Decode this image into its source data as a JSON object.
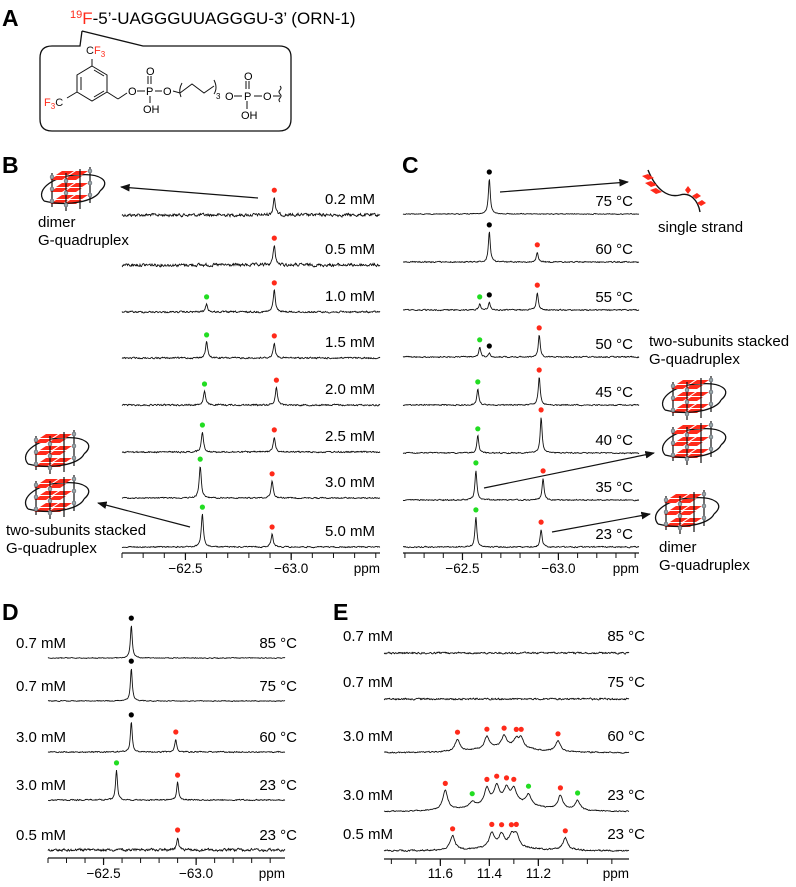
{
  "panel_a": {
    "letter": "A",
    "title_isotope": "19",
    "title_atom": "F",
    "title_sequence": "-5’-UAGGGUUAGGGU-3’ (ORN-1)",
    "molecule": {
      "cf3_top": "CF",
      "cf3_top_sub": "3",
      "f3c_left_f": "F",
      "f3c_left_sub": "3",
      "f3c_left_c": "C",
      "atoms": [
        "O",
        "P",
        "O",
        "O",
        "OH",
        "O",
        "P",
        "O",
        "O",
        "OH"
      ],
      "chain_repeat": "3"
    }
  },
  "annotations": {
    "b_dimer_line1": "dimer",
    "b_dimer_line2": "G-quadruplex",
    "b_stacked_line1": "two-subunits stacked",
    "b_stacked_line2": "G-quadruplex",
    "c_single": "single strand",
    "c_stacked_line1": "two-subunits stacked",
    "c_stacked_line2": "G-quadruplex",
    "c_dimer_line1": "dimer",
    "c_dimer_line2": "G-quadruplex"
  },
  "colors": {
    "dimer_peak": "#ff2a1a",
    "stacked_peak": "#22dd22",
    "single_strand_peak": "#000000",
    "tile": "#ff2a1a",
    "node": "#9aa9a9"
  },
  "chart_data": [
    {
      "panel": "B",
      "type": "line",
      "subtype": "NMR spectra stack",
      "xlabel": "ppm",
      "xlim": [
        -62.2,
        -63.42
      ],
      "x_ticks": [
        {
          "value": -62.5,
          "label": "−62.5"
        },
        {
          "value": -63.0,
          "label": "−63.0"
        }
      ],
      "minor_tick_step": 0.1,
      "line_width_ppm": 0.006,
      "rows": [
        {
          "label": "0.2 mM",
          "noise": 2.5,
          "peaks": [
            {
              "ppm": -62.92,
              "intensity": 0.51,
              "marker": "red"
            }
          ]
        },
        {
          "label": "0.5 mM",
          "noise": 2.5,
          "peaks": [
            {
              "ppm": -62.92,
              "intensity": 0.57,
              "marker": "red"
            }
          ]
        },
        {
          "label": "1.0 mM",
          "noise": 1.4,
          "peaks": [
            {
              "ppm": -62.6,
              "intensity": 0.23,
              "marker": "green"
            },
            {
              "ppm": -62.92,
              "intensity": 0.63,
              "marker": "red"
            }
          ]
        },
        {
          "label": "1.5 mM",
          "noise": 1.3,
          "peaks": [
            {
              "ppm": -62.6,
              "intensity": 0.46,
              "marker": "green"
            },
            {
              "ppm": -62.92,
              "intensity": 0.43,
              "marker": "red"
            }
          ]
        },
        {
          "label": "2.0 mM",
          "noise": 1.3,
          "peaks": [
            {
              "ppm": -62.59,
              "intensity": 0.4,
              "marker": "green"
            },
            {
              "ppm": -62.93,
              "intensity": 0.51,
              "marker": "red"
            }
          ]
        },
        {
          "label": "2.5 mM",
          "noise": 1.2,
          "peaks": [
            {
              "ppm": -62.58,
              "intensity": 0.57,
              "marker": "green"
            },
            {
              "ppm": -62.92,
              "intensity": 0.43,
              "marker": "red"
            }
          ]
        },
        {
          "label": "3.0 mM",
          "noise": 1.0,
          "peaks": [
            {
              "ppm": -62.57,
              "intensity": 0.91,
              "marker": "green"
            },
            {
              "ppm": -62.91,
              "intensity": 0.49,
              "marker": "red"
            }
          ]
        },
        {
          "label": "5.0 mM",
          "noise": 1.0,
          "peaks": [
            {
              "ppm": -62.58,
              "intensity": 0.94,
              "marker": "green"
            },
            {
              "ppm": -62.91,
              "intensity": 0.37,
              "marker": "red"
            }
          ]
        }
      ]
    },
    {
      "panel": "C",
      "type": "line",
      "subtype": "NMR spectra stack",
      "xlabel": "ppm",
      "xlim": [
        -62.19,
        -63.42
      ],
      "x_ticks": [
        {
          "value": -62.5,
          "label": "−62.5"
        },
        {
          "value": -63.0,
          "label": "−63.0"
        }
      ],
      "minor_tick_step": 0.1,
      "line_width_ppm": 0.006,
      "rows": [
        {
          "label": "75 °C",
          "noise": 0.7,
          "peaks": [
            {
              "ppm": -62.64,
              "intensity": 1.0,
              "marker": "black"
            }
          ]
        },
        {
          "label": "60 °C",
          "noise": 1.0,
          "peaks": [
            {
              "ppm": -62.64,
              "intensity": 0.86,
              "marker": "black"
            },
            {
              "ppm": -62.89,
              "intensity": 0.29,
              "marker": "red"
            }
          ]
        },
        {
          "label": "55 °C",
          "noise": 1.0,
          "peaks": [
            {
              "ppm": -62.59,
              "intensity": 0.17,
              "marker": "green"
            },
            {
              "ppm": -62.64,
              "intensity": 0.23,
              "marker": "black"
            },
            {
              "ppm": -62.89,
              "intensity": 0.51,
              "marker": "red"
            }
          ]
        },
        {
          "label": "50 °C",
          "noise": 1.0,
          "peaks": [
            {
              "ppm": -62.59,
              "intensity": 0.29,
              "marker": "green"
            },
            {
              "ppm": -62.64,
              "intensity": 0.11,
              "marker": "black"
            },
            {
              "ppm": -62.9,
              "intensity": 0.63,
              "marker": "red"
            }
          ]
        },
        {
          "label": "45 °C",
          "noise": 1.0,
          "peaks": [
            {
              "ppm": -62.58,
              "intensity": 0.46,
              "marker": "green"
            },
            {
              "ppm": -62.9,
              "intensity": 0.8,
              "marker": "red"
            }
          ]
        },
        {
          "label": "40 °C",
          "noise": 1.0,
          "peaks": [
            {
              "ppm": -62.58,
              "intensity": 0.49,
              "marker": "green"
            },
            {
              "ppm": -62.91,
              "intensity": 1.03,
              "marker": "red"
            }
          ]
        },
        {
          "label": "35 °C",
          "noise": 1.0,
          "peaks": [
            {
              "ppm": -62.57,
              "intensity": 0.86,
              "marker": "green"
            },
            {
              "ppm": -62.92,
              "intensity": 0.63,
              "marker": "red"
            }
          ]
        },
        {
          "label": "23 °C",
          "noise": 1.0,
          "peaks": [
            {
              "ppm": -62.57,
              "intensity": 0.86,
              "marker": "green"
            },
            {
              "ppm": -62.91,
              "intensity": 0.51,
              "marker": "red"
            }
          ]
        }
      ]
    },
    {
      "panel": "D",
      "type": "line",
      "subtype": "NMR spectra stack",
      "xlabel": "ppm",
      "xlim": [
        -62.2,
        -63.48
      ],
      "x_ticks": [
        {
          "value": -62.5,
          "label": "−62.5"
        },
        {
          "value": -63.0,
          "label": "−63.0"
        }
      ],
      "minor_tick_step": 0.1,
      "line_width_ppm": 0.006,
      "rows": [
        {
          "label": "0.7 mM",
          "condition": "85 °C",
          "noise": 0.7,
          "peaks": [
            {
              "ppm": -62.65,
              "intensity": 0.94,
              "marker": "black"
            }
          ]
        },
        {
          "label": "0.7 mM",
          "condition": "75 °C",
          "noise": 0.7,
          "peaks": [
            {
              "ppm": -62.65,
              "intensity": 0.94,
              "marker": "black"
            }
          ]
        },
        {
          "label": "3.0 mM",
          "condition": "60 °C",
          "noise": 1.0,
          "peaks": [
            {
              "ppm": -62.65,
              "intensity": 0.86,
              "marker": "black"
            },
            {
              "ppm": -62.89,
              "intensity": 0.37,
              "marker": "red"
            }
          ]
        },
        {
          "label": "3.0 mM",
          "condition": "23 °C",
          "noise": 1.0,
          "peaks": [
            {
              "ppm": -62.57,
              "intensity": 0.86,
              "marker": "green"
            },
            {
              "ppm": -62.9,
              "intensity": 0.51,
              "marker": "red"
            }
          ]
        },
        {
          "label": "0.5 mM",
          "condition": "23 °C",
          "noise": 2.2,
          "peaks": [
            {
              "ppm": -62.9,
              "intensity": 0.37,
              "marker": "red"
            }
          ]
        }
      ]
    },
    {
      "panel": "E",
      "type": "line",
      "subtype": "NMR spectra stack",
      "xlabel": "ppm",
      "xlim": [
        11.83,
        10.83
      ],
      "x_ticks": [
        {
          "value": 11.6,
          "label": "11.6"
        },
        {
          "value": 11.4,
          "label": "11.4"
        },
        {
          "value": 11.2,
          "label": "11.2"
        }
      ],
      "minor_tick_step": 0.1,
      "line_width_ppm": 0.012,
      "rows": [
        {
          "label": "0.7 mM",
          "condition": "85 °C",
          "noise": 1.4,
          "peaks": []
        },
        {
          "label": "0.7 mM",
          "condition": "75 °C",
          "noise": 1.4,
          "peaks": []
        },
        {
          "label": "3.0 mM",
          "condition": "60 °C",
          "noise": 1.0,
          "peaks": [
            {
              "ppm": 11.33,
              "intensity": 0.18,
              "marker": null,
              "broad": true
            },
            {
              "ppm": 11.53,
              "intensity": 0.34,
              "marker": "red"
            },
            {
              "ppm": 11.41,
              "intensity": 0.34,
              "marker": "red"
            },
            {
              "ppm": 11.34,
              "intensity": 0.3,
              "marker": "red"
            },
            {
              "ppm": 11.29,
              "intensity": 0.22,
              "marker": "red"
            },
            {
              "ppm": 11.27,
              "intensity": 0.26,
              "marker": "red"
            },
            {
              "ppm": 11.12,
              "intensity": 0.3,
              "marker": "red"
            }
          ]
        },
        {
          "label": "3.0 mM",
          "condition": "23 °C",
          "noise": 0.8,
          "peaks": [
            {
              "ppm": 11.33,
              "intensity": 0.32,
              "marker": null,
              "broad": true
            },
            {
              "ppm": 11.58,
              "intensity": 0.55,
              "marker": "red"
            },
            {
              "ppm": 11.47,
              "intensity": 0.15,
              "marker": "green"
            },
            {
              "ppm": 11.41,
              "intensity": 0.45,
              "marker": "red"
            },
            {
              "ppm": 11.37,
              "intensity": 0.45,
              "marker": "red"
            },
            {
              "ppm": 11.33,
              "intensity": 0.35,
              "marker": "red"
            },
            {
              "ppm": 11.3,
              "intensity": 0.35,
              "marker": "red"
            },
            {
              "ppm": 11.24,
              "intensity": 0.3,
              "marker": "green"
            },
            {
              "ppm": 11.11,
              "intensity": 0.4,
              "marker": "red"
            },
            {
              "ppm": 11.04,
              "intensity": 0.28,
              "marker": "green"
            }
          ]
        },
        {
          "label": "0.5 mM",
          "condition": "23 °C",
          "noise": 1.2,
          "peaks": [
            {
              "ppm": 11.33,
              "intensity": 0.12,
              "marker": null,
              "broad": true
            },
            {
              "ppm": 11.55,
              "intensity": 0.4,
              "marker": "red"
            },
            {
              "ppm": 11.39,
              "intensity": 0.42,
              "marker": "red"
            },
            {
              "ppm": 11.35,
              "intensity": 0.36,
              "marker": "red"
            },
            {
              "ppm": 11.31,
              "intensity": 0.3,
              "marker": "red"
            },
            {
              "ppm": 11.29,
              "intensity": 0.35,
              "marker": "red"
            },
            {
              "ppm": 11.09,
              "intensity": 0.35,
              "marker": "red"
            }
          ]
        }
      ]
    }
  ]
}
